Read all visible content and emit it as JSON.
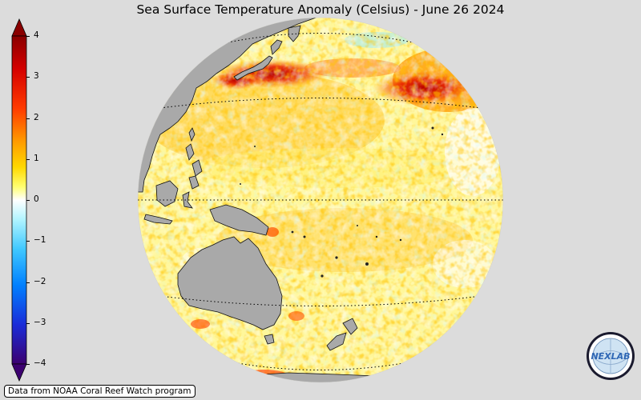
{
  "title": "Sea Surface Temperature Anomaly (Celsius) - June 26 2024",
  "colorbar": {
    "min": -4,
    "max": 4,
    "ticks": [
      "4",
      "3",
      "2",
      "1",
      "0",
      "−1",
      "−2",
      "−3",
      "−4"
    ],
    "colors": [
      "#3a007a",
      "#1c3cff",
      "#00a0ff",
      "#7fe6ff",
      "#ffffff",
      "#ffff40",
      "#ffb000",
      "#ff4000",
      "#c00000",
      "#7a0000"
    ]
  },
  "credit": "Data from NOAA Coral Reef Watch program",
  "logo": {
    "text": "NEXLAB"
  },
  "map": {
    "projection": "orthographic",
    "center": "equatorial western Pacific",
    "land_color": "#a9a9a9",
    "ocean_background": "#fff7a0"
  }
}
